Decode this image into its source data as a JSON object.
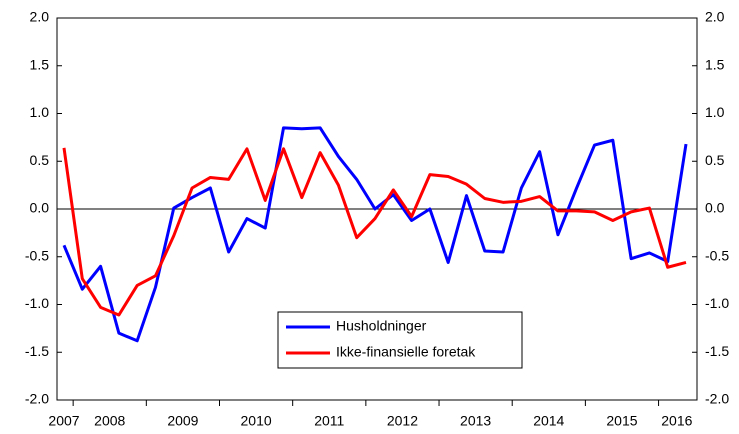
{
  "chart_data": {
    "type": "line",
    "categories": [
      "2007",
      "2008",
      null,
      null,
      null,
      "2009",
      null,
      null,
      null,
      "2010",
      null,
      null,
      null,
      "2011",
      null,
      null,
      null,
      "2012",
      null,
      null,
      null,
      "2013",
      null,
      null,
      null,
      "2014",
      null,
      null,
      null,
      "2015",
      null,
      null,
      null,
      "2016",
      null
    ],
    "series": [
      {
        "name": "Husholdninger",
        "color": "#0000ff",
        "values": [
          -0.38,
          -0.84,
          -0.6,
          -1.3,
          -1.38,
          -0.82,
          0.01,
          0.12,
          0.22,
          -0.45,
          -0.1,
          -0.2,
          0.85,
          0.84,
          0.85,
          0.55,
          0.31,
          0.0,
          0.15,
          -0.12,
          0.0,
          -0.56,
          0.14,
          -0.44,
          -0.45,
          0.22,
          0.6,
          -0.27,
          0.21,
          0.67,
          0.72,
          -0.52,
          -0.46,
          -0.55,
          0.68
        ]
      },
      {
        "name": "Ikke-finansielle foretak",
        "color": "#ff0000",
        "values": [
          0.64,
          -0.73,
          -1.03,
          -1.11,
          -0.8,
          -0.7,
          -0.28,
          0.22,
          0.33,
          0.31,
          0.63,
          0.09,
          0.63,
          0.12,
          0.59,
          0.25,
          -0.3,
          -0.1,
          0.2,
          -0.08,
          0.36,
          0.34,
          0.26,
          0.11,
          0.07,
          0.08,
          0.13,
          -0.02,
          -0.02,
          -0.03,
          -0.12,
          -0.03,
          0.01,
          -0.61,
          -0.56
        ]
      }
    ],
    "ylim": [
      -2.0,
      2.0
    ],
    "yticks": [
      {
        "value": -2,
        "label": "-2.0"
      },
      {
        "value": -1.5,
        "label": "-1.5"
      },
      {
        "value": -1,
        "label": "-1.0"
      },
      {
        "value": -0.5,
        "label": "-0.5"
      },
      {
        "value": 0,
        "label": "0.0"
      },
      {
        "value": 0.5,
        "label": "0.5"
      },
      {
        "value": 1,
        "label": "1.0"
      },
      {
        "value": 1.5,
        "label": "1.5"
      },
      {
        "value": 2,
        "label": "2.0"
      }
    ],
    "y2lim": [
      -2.0,
      2.0
    ],
    "y2ticks": [
      {
        "value": -2,
        "label": "-2.0"
      },
      {
        "value": -1.5,
        "label": "-1.5"
      },
      {
        "value": -1,
        "label": "-1.0"
      },
      {
        "value": -0.5,
        "label": "-0.5"
      },
      {
        "value": 0,
        "label": "0.0"
      },
      {
        "value": 0.5,
        "label": "0.5"
      },
      {
        "value": 1,
        "label": "1.0"
      },
      {
        "value": 1.5,
        "label": "1.5"
      },
      {
        "value": 2,
        "label": "2.0"
      }
    ],
    "zero_line": true,
    "grid": false,
    "legend": "lower center"
  }
}
